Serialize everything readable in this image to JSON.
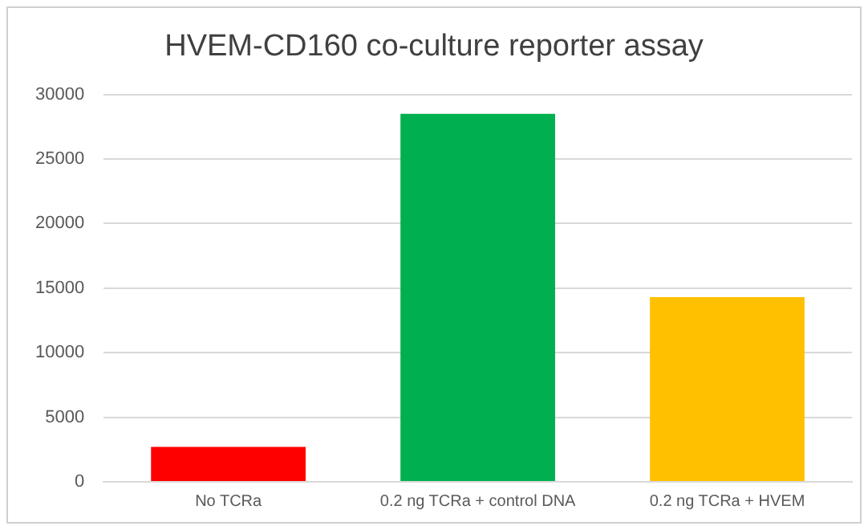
{
  "chart_data": {
    "type": "bar",
    "title": "HVEM-CD160 co-culture reporter assay",
    "categories": [
      "No TCRa",
      "0.2 ng TCRa + control DNA",
      "0.2 ng TCRa + HVEM"
    ],
    "values": [
      2700,
      28500,
      14300
    ],
    "colors": [
      "#ff0000",
      "#00b050",
      "#ffc000"
    ],
    "ylim": [
      0,
      30000
    ],
    "yticks": [
      0,
      5000,
      10000,
      15000,
      20000,
      25000,
      30000
    ],
    "grid": "y"
  }
}
